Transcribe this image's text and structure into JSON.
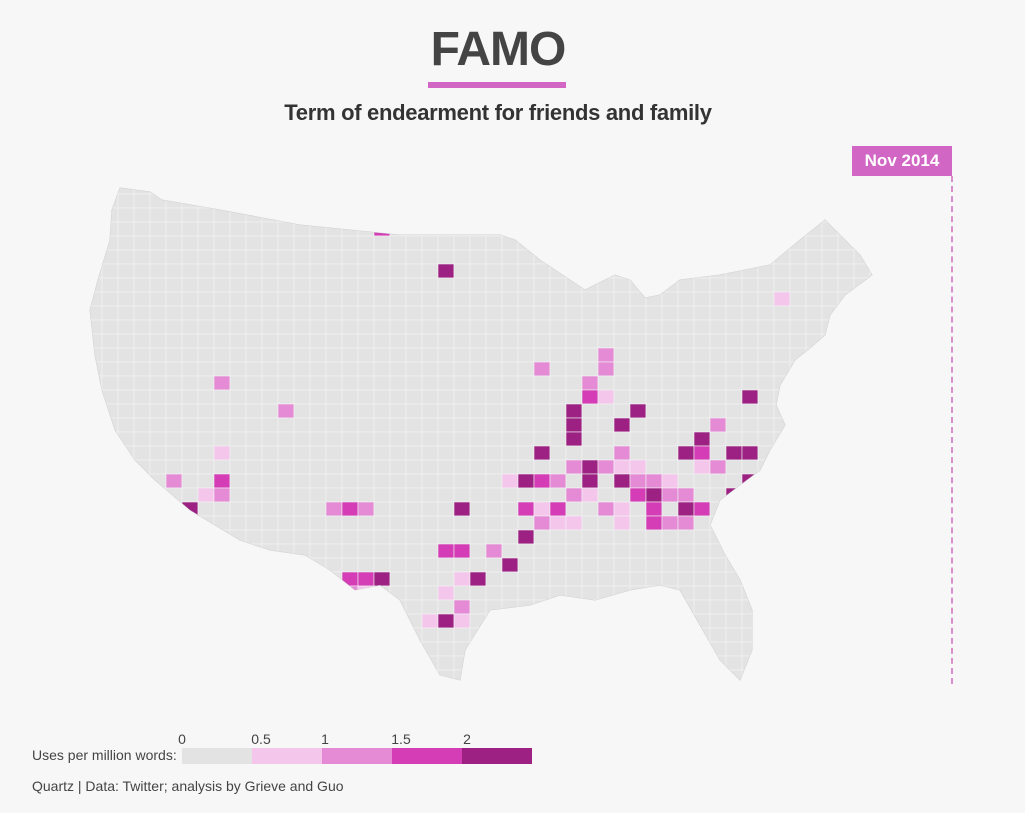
{
  "header": {
    "title": "FAMO",
    "subtitle": "Term of endearment for friends and family"
  },
  "timeline": {
    "date_label": "Nov 2014"
  },
  "legend": {
    "label": "Uses per million words:",
    "ticks": [
      "0",
      "0.5",
      "1",
      "1.5",
      "2"
    ],
    "bins": [
      {
        "range": [
          0,
          0.5
        ],
        "color": "#e3e3e3"
      },
      {
        "range": [
          0.5,
          1
        ],
        "color": "#f4c6ec"
      },
      {
        "range": [
          1,
          1.5
        ],
        "color": "#e58bd6"
      },
      {
        "range": [
          1.5,
          2
        ],
        "color": "#d43db5"
      },
      {
        "range": [
          2,
          2.5
        ],
        "color": "#9c2182"
      }
    ]
  },
  "source": {
    "text": "Quartz | Data: Twitter; analysis by Grieve and Guo"
  },
  "colors": {
    "accent": "#d166c4",
    "land": "#e3e3e3",
    "background": "#f7f7f7"
  }
}
